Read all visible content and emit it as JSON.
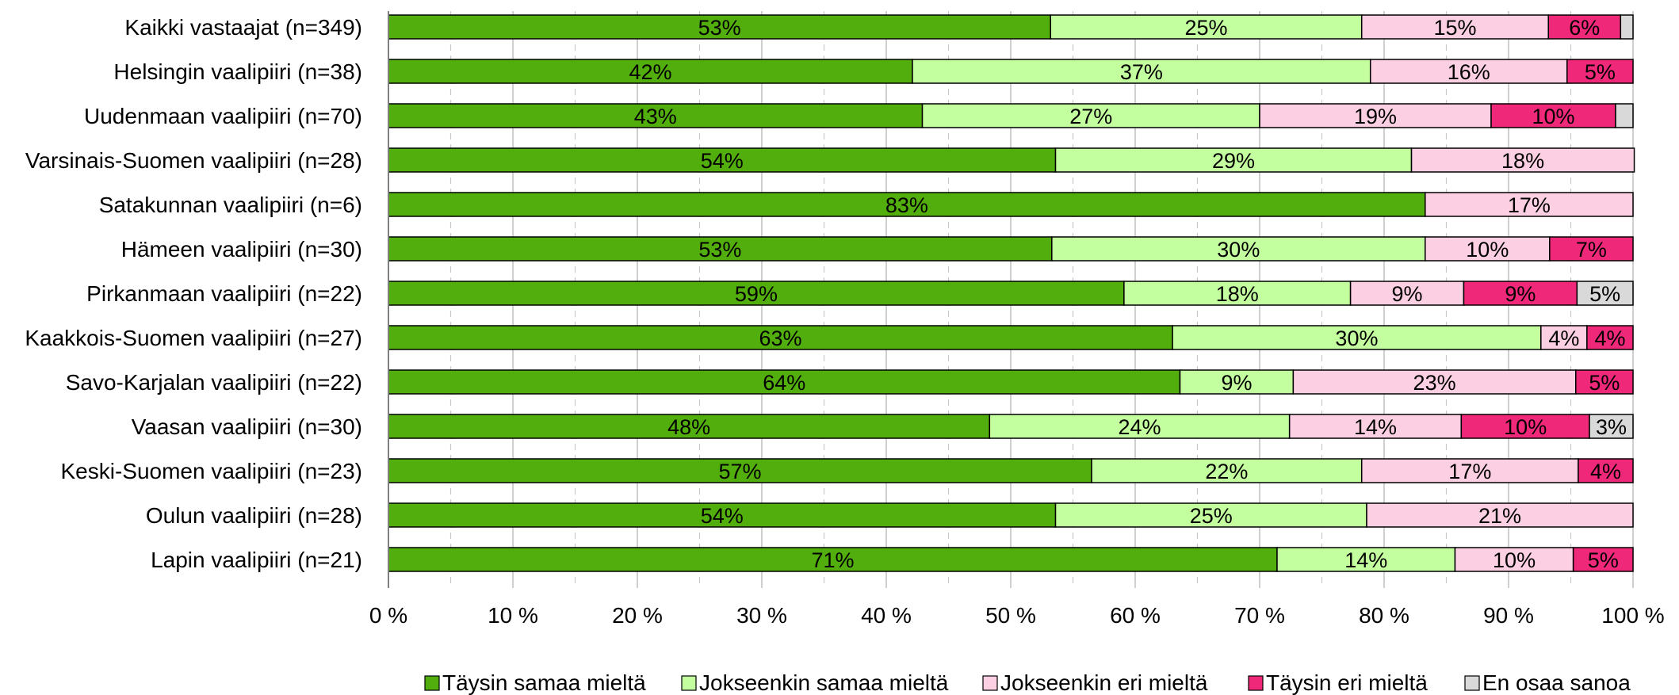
{
  "chart_data": {
    "type": "bar",
    "orientation": "horizontal",
    "stacked": true,
    "categories": [
      "Kaikki vastaajat (n=349)",
      "Helsingin vaalipiiri (n=38)",
      "Uudenmaan vaalipiiri (n=70)",
      "Varsinais-Suomen vaalipiiri (n=28)",
      "Satakunnan vaalipiiri (n=6)",
      "Hämeen vaalipiiri (n=30)",
      "Pirkanmaan vaalipiiri (n=22)",
      "Kaakkois-Suomen vaalipiiri (n=27)",
      "Savo-Karjalan vaalipiiri (n=22)",
      "Vaasan vaalipiiri (n=30)",
      "Keski-Suomen vaalipiiri (n=23)",
      "Oulun vaalipiiri (n=28)",
      "Lapin vaalipiiri (n=21)"
    ],
    "series": [
      {
        "name": "Täysin samaa mieltä",
        "color": "#52ae0d",
        "values": [
          53.2,
          42.1,
          42.9,
          53.6,
          83.3,
          53.3,
          59.1,
          63.0,
          63.6,
          48.3,
          56.5,
          53.6,
          71.4
        ],
        "labels": [
          "53%",
          "42%",
          "43%",
          "54%",
          "83%",
          "53%",
          "59%",
          "63%",
          "64%",
          "48%",
          "57%",
          "54%",
          "71%"
        ]
      },
      {
        "name": "Jokseenkin samaa mieltä",
        "color": "#c3ff9e",
        "values": [
          25.0,
          36.8,
          27.1,
          28.6,
          0,
          30.0,
          18.2,
          29.6,
          9.1,
          24.1,
          21.7,
          25.0,
          14.3
        ],
        "labels": [
          "25%",
          "37%",
          "27%",
          "29%",
          "",
          "30%",
          "18%",
          "30%",
          "9%",
          "24%",
          "22%",
          "25%",
          "14%"
        ]
      },
      {
        "name": "Jokseenkin eri mieltä",
        "color": "#fccfe3",
        "values": [
          15.0,
          15.8,
          18.6,
          17.9,
          16.7,
          10.0,
          9.1,
          3.7,
          22.7,
          13.8,
          17.4,
          21.4,
          9.5
        ],
        "labels": [
          "15%",
          "16%",
          "19%",
          "18%",
          "17%",
          "10%",
          "9%",
          "4%",
          "23%",
          "14%",
          "17%",
          "21%",
          "10%"
        ]
      },
      {
        "name": "Täysin eri mieltä",
        "color": "#f0287a",
        "values": [
          5.8,
          5.3,
          10.0,
          0,
          0,
          6.7,
          9.1,
          3.7,
          4.6,
          10.3,
          4.4,
          0,
          4.8
        ],
        "labels": [
          "6%",
          "5%",
          "10%",
          "",
          "",
          "7%",
          "9%",
          "4%",
          "5%",
          "10%",
          "4%",
          "",
          "5%"
        ]
      },
      {
        "name": "En osaa sanoa",
        "color": "#d9d9d9",
        "values": [
          1.0,
          0,
          1.4,
          0,
          0,
          0,
          4.5,
          0,
          0,
          3.5,
          0,
          0,
          0
        ],
        "labels": [
          "",
          "",
          "",
          "",
          "",
          "",
          "5%",
          "",
          "",
          "3%",
          "",
          "",
          ""
        ]
      }
    ],
    "xlim": [
      0,
      100
    ],
    "xticks": [
      "0 %",
      "10 %",
      "20 %",
      "30 %",
      "40 %",
      "50 %",
      "60 %",
      "70 %",
      "80 %",
      "90 %",
      "100 %"
    ],
    "grid": "vertical",
    "legend_position": "bottom-right"
  }
}
